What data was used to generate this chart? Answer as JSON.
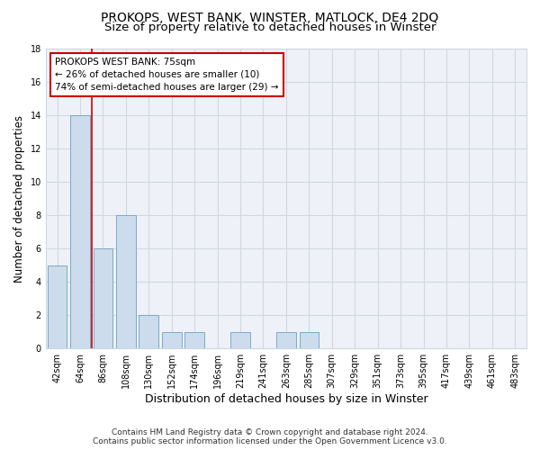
{
  "title": "PROKOPS, WEST BANK, WINSTER, MATLOCK, DE4 2DQ",
  "subtitle": "Size of property relative to detached houses in Winster",
  "xlabel": "Distribution of detached houses by size in Winster",
  "ylabel": "Number of detached properties",
  "categories": [
    "42sqm",
    "64sqm",
    "86sqm",
    "108sqm",
    "130sqm",
    "152sqm",
    "174sqm",
    "196sqm",
    "219sqm",
    "241sqm",
    "263sqm",
    "285sqm",
    "307sqm",
    "329sqm",
    "351sqm",
    "373sqm",
    "395sqm",
    "417sqm",
    "439sqm",
    "461sqm",
    "483sqm"
  ],
  "values": [
    5,
    14,
    6,
    8,
    2,
    1,
    1,
    0,
    1,
    0,
    1,
    1,
    0,
    0,
    0,
    0,
    0,
    0,
    0,
    0,
    0
  ],
  "bar_color": "#ccdcec",
  "bar_edge_color": "#7aaaca",
  "red_line_x": 1.5,
  "annotation_text": "PROKOPS WEST BANK: 75sqm\n← 26% of detached houses are smaller (10)\n74% of semi-detached houses are larger (29) →",
  "annotation_box_color": "#ffffff",
  "annotation_box_edge_color": "#cc0000",
  "ylim": [
    0,
    18
  ],
  "yticks": [
    0,
    2,
    4,
    6,
    8,
    10,
    12,
    14,
    16,
    18
  ],
  "grid_color": "#d0d8e0",
  "background_color": "#ffffff",
  "plot_bg_color": "#eef2f8",
  "footer_text": "Contains HM Land Registry data © Crown copyright and database right 2024.\nContains public sector information licensed under the Open Government Licence v3.0.",
  "title_fontsize": 10,
  "subtitle_fontsize": 9.5,
  "xlabel_fontsize": 9,
  "ylabel_fontsize": 8.5,
  "tick_fontsize": 7,
  "annotation_fontsize": 7.5,
  "footer_fontsize": 6.5
}
